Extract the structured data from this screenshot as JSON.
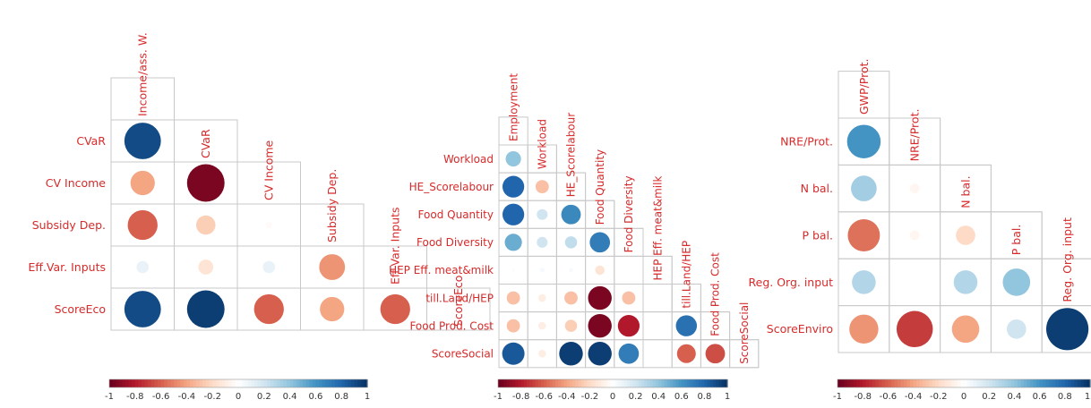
{
  "colors": {
    "label": "#D62B2B",
    "tick": "#333333",
    "grid": "#C8C8C8",
    "scale": [
      "#67001F",
      "#B2182B",
      "#D6604D",
      "#F4A582",
      "#FDDBC7",
      "#FFFFFF",
      "#D1E5F0",
      "#92C5DE",
      "#4393C3",
      "#2166AC",
      "#053061"
    ]
  },
  "chart_data": [
    {
      "type": "heatmap",
      "variant": "correlation-circles-lower-triangle",
      "variables": [
        "Income/ass. W.",
        "CVaR",
        "CV Income",
        "Subsidy Dep.",
        "Eff.Var. Inputs",
        "ScoreEco"
      ],
      "correlations": [
        [
          0.9
        ],
        [
          -0.4,
          -0.95
        ],
        [
          -0.6,
          -0.25,
          -0.03
        ],
        [
          0.1,
          -0.15,
          0.1,
          -0.45
        ],
        [
          0.9,
          0.95,
          -0.6,
          -0.4,
          -0.6
        ]
      ],
      "colorbar": {
        "range": [
          -1,
          1
        ],
        "ticks": [
          "-1",
          "-0.8",
          "-0.6",
          "-0.4",
          "-0.2",
          "0",
          "0.2",
          "0.4",
          "0.6",
          "0.8",
          "1"
        ]
      }
    },
    {
      "type": "heatmap",
      "variant": "correlation-circles-lower-triangle",
      "variables": [
        "Employment",
        "Workload",
        "HE_Scorelabour",
        "Food Quantity",
        "Food Diversity",
        "HEP Eff. meat&milk",
        "till.Land/HEP",
        "Food Prod. Cost",
        "ScoreSocial"
      ],
      "correlations": [
        [
          0.4
        ],
        [
          0.8,
          -0.3
        ],
        [
          0.8,
          0.2,
          0.65
        ],
        [
          0.5,
          0.2,
          0.25,
          0.7
        ],
        [
          0.02,
          0.04,
          0.03,
          -0.15,
          0.0
        ],
        [
          -0.3,
          -0.1,
          -0.3,
          -0.95,
          -0.3,
          0.0
        ],
        [
          -0.3,
          -0.1,
          -0.25,
          -0.95,
          -0.8,
          0.0,
          0.75
        ],
        [
          0.85,
          -0.1,
          0.95,
          0.95,
          0.7,
          0.0,
          -0.6,
          -0.65
        ]
      ],
      "colorbar": {
        "range": [
          -1,
          1
        ],
        "ticks": [
          "-1",
          "-0.8",
          "-0.6",
          "-0.4",
          "-0.2",
          "0",
          "0.2",
          "0.4",
          "0.6",
          "0.8",
          "1"
        ]
      }
    },
    {
      "type": "heatmap",
      "variant": "correlation-circles-lower-triangle",
      "variables": [
        "GWP/Prot.",
        "NRE/Prot.",
        "N bal.",
        "P bal.",
        "Reg. Org. input",
        "ScoreEnviro"
      ],
      "correlations": [
        [
          0.6
        ],
        [
          0.35,
          -0.05
        ],
        [
          -0.55,
          -0.05,
          -0.2
        ],
        [
          0.3,
          0.0,
          0.3,
          0.4
        ],
        [
          -0.45,
          -0.7,
          -0.4,
          0.2,
          0.95
        ]
      ],
      "colorbar": {
        "range": [
          -1,
          1
        ],
        "ticks": [
          "-1",
          "-0.8",
          "-0.6",
          "-0.4",
          "-0.2",
          "0",
          "0.2",
          "0.4",
          "0.6",
          "0.8",
          "1"
        ]
      }
    }
  ]
}
